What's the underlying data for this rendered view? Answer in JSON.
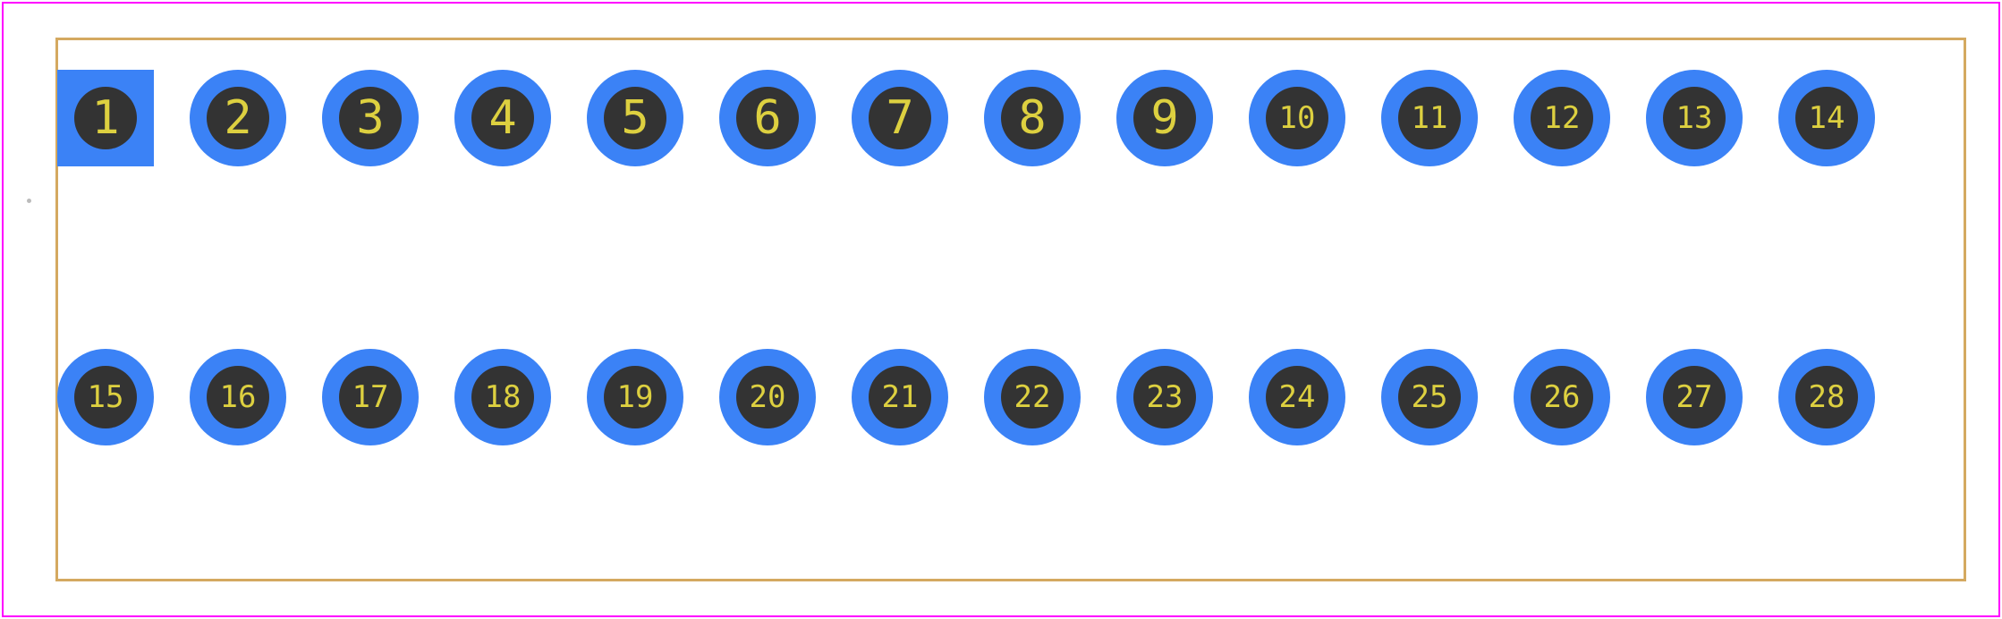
{
  "footprint": {
    "border_color": "#ff00ff",
    "inner_border_color": "#d4a960",
    "inner_border_width": 3,
    "background": "#ffffff",
    "pin_ring_color": "#3b82f6",
    "pin_hole_color": "#333333",
    "pin_label_color": "#ddd040",
    "pin_square_color": "#3b82f6",
    "rows": [
      {
        "pins": [
          {
            "label": "1",
            "shape": "square",
            "font_size": 52
          },
          {
            "label": "2",
            "shape": "circle",
            "font_size": 52
          },
          {
            "label": "3",
            "shape": "circle",
            "font_size": 52
          },
          {
            "label": "4",
            "shape": "circle",
            "font_size": 52
          },
          {
            "label": "5",
            "shape": "circle",
            "font_size": 52
          },
          {
            "label": "6",
            "shape": "circle",
            "font_size": 52
          },
          {
            "label": "7",
            "shape": "circle",
            "font_size": 52
          },
          {
            "label": "8",
            "shape": "circle",
            "font_size": 52
          },
          {
            "label": "9",
            "shape": "circle",
            "font_size": 52
          },
          {
            "label": "10",
            "shape": "circle",
            "font_size": 34
          },
          {
            "label": "11",
            "shape": "circle",
            "font_size": 34
          },
          {
            "label": "12",
            "shape": "circle",
            "font_size": 34
          },
          {
            "label": "13",
            "shape": "circle",
            "font_size": 34
          },
          {
            "label": "14",
            "shape": "circle",
            "font_size": 34
          }
        ]
      },
      {
        "pins": [
          {
            "label": "15",
            "shape": "circle",
            "font_size": 34
          },
          {
            "label": "16",
            "shape": "circle",
            "font_size": 34
          },
          {
            "label": "17",
            "shape": "circle",
            "font_size": 34
          },
          {
            "label": "18",
            "shape": "circle",
            "font_size": 34
          },
          {
            "label": "19",
            "shape": "circle",
            "font_size": 34
          },
          {
            "label": "20",
            "shape": "circle",
            "font_size": 34
          },
          {
            "label": "21",
            "shape": "circle",
            "font_size": 34
          },
          {
            "label": "22",
            "shape": "circle",
            "font_size": 34
          },
          {
            "label": "23",
            "shape": "circle",
            "font_size": 34
          },
          {
            "label": "24",
            "shape": "circle",
            "font_size": 34
          },
          {
            "label": "25",
            "shape": "circle",
            "font_size": 34
          },
          {
            "label": "26",
            "shape": "circle",
            "font_size": 34
          },
          {
            "label": "27",
            "shape": "circle",
            "font_size": 34
          },
          {
            "label": "28",
            "shape": "circle",
            "font_size": 34
          }
        ]
      }
    ]
  }
}
